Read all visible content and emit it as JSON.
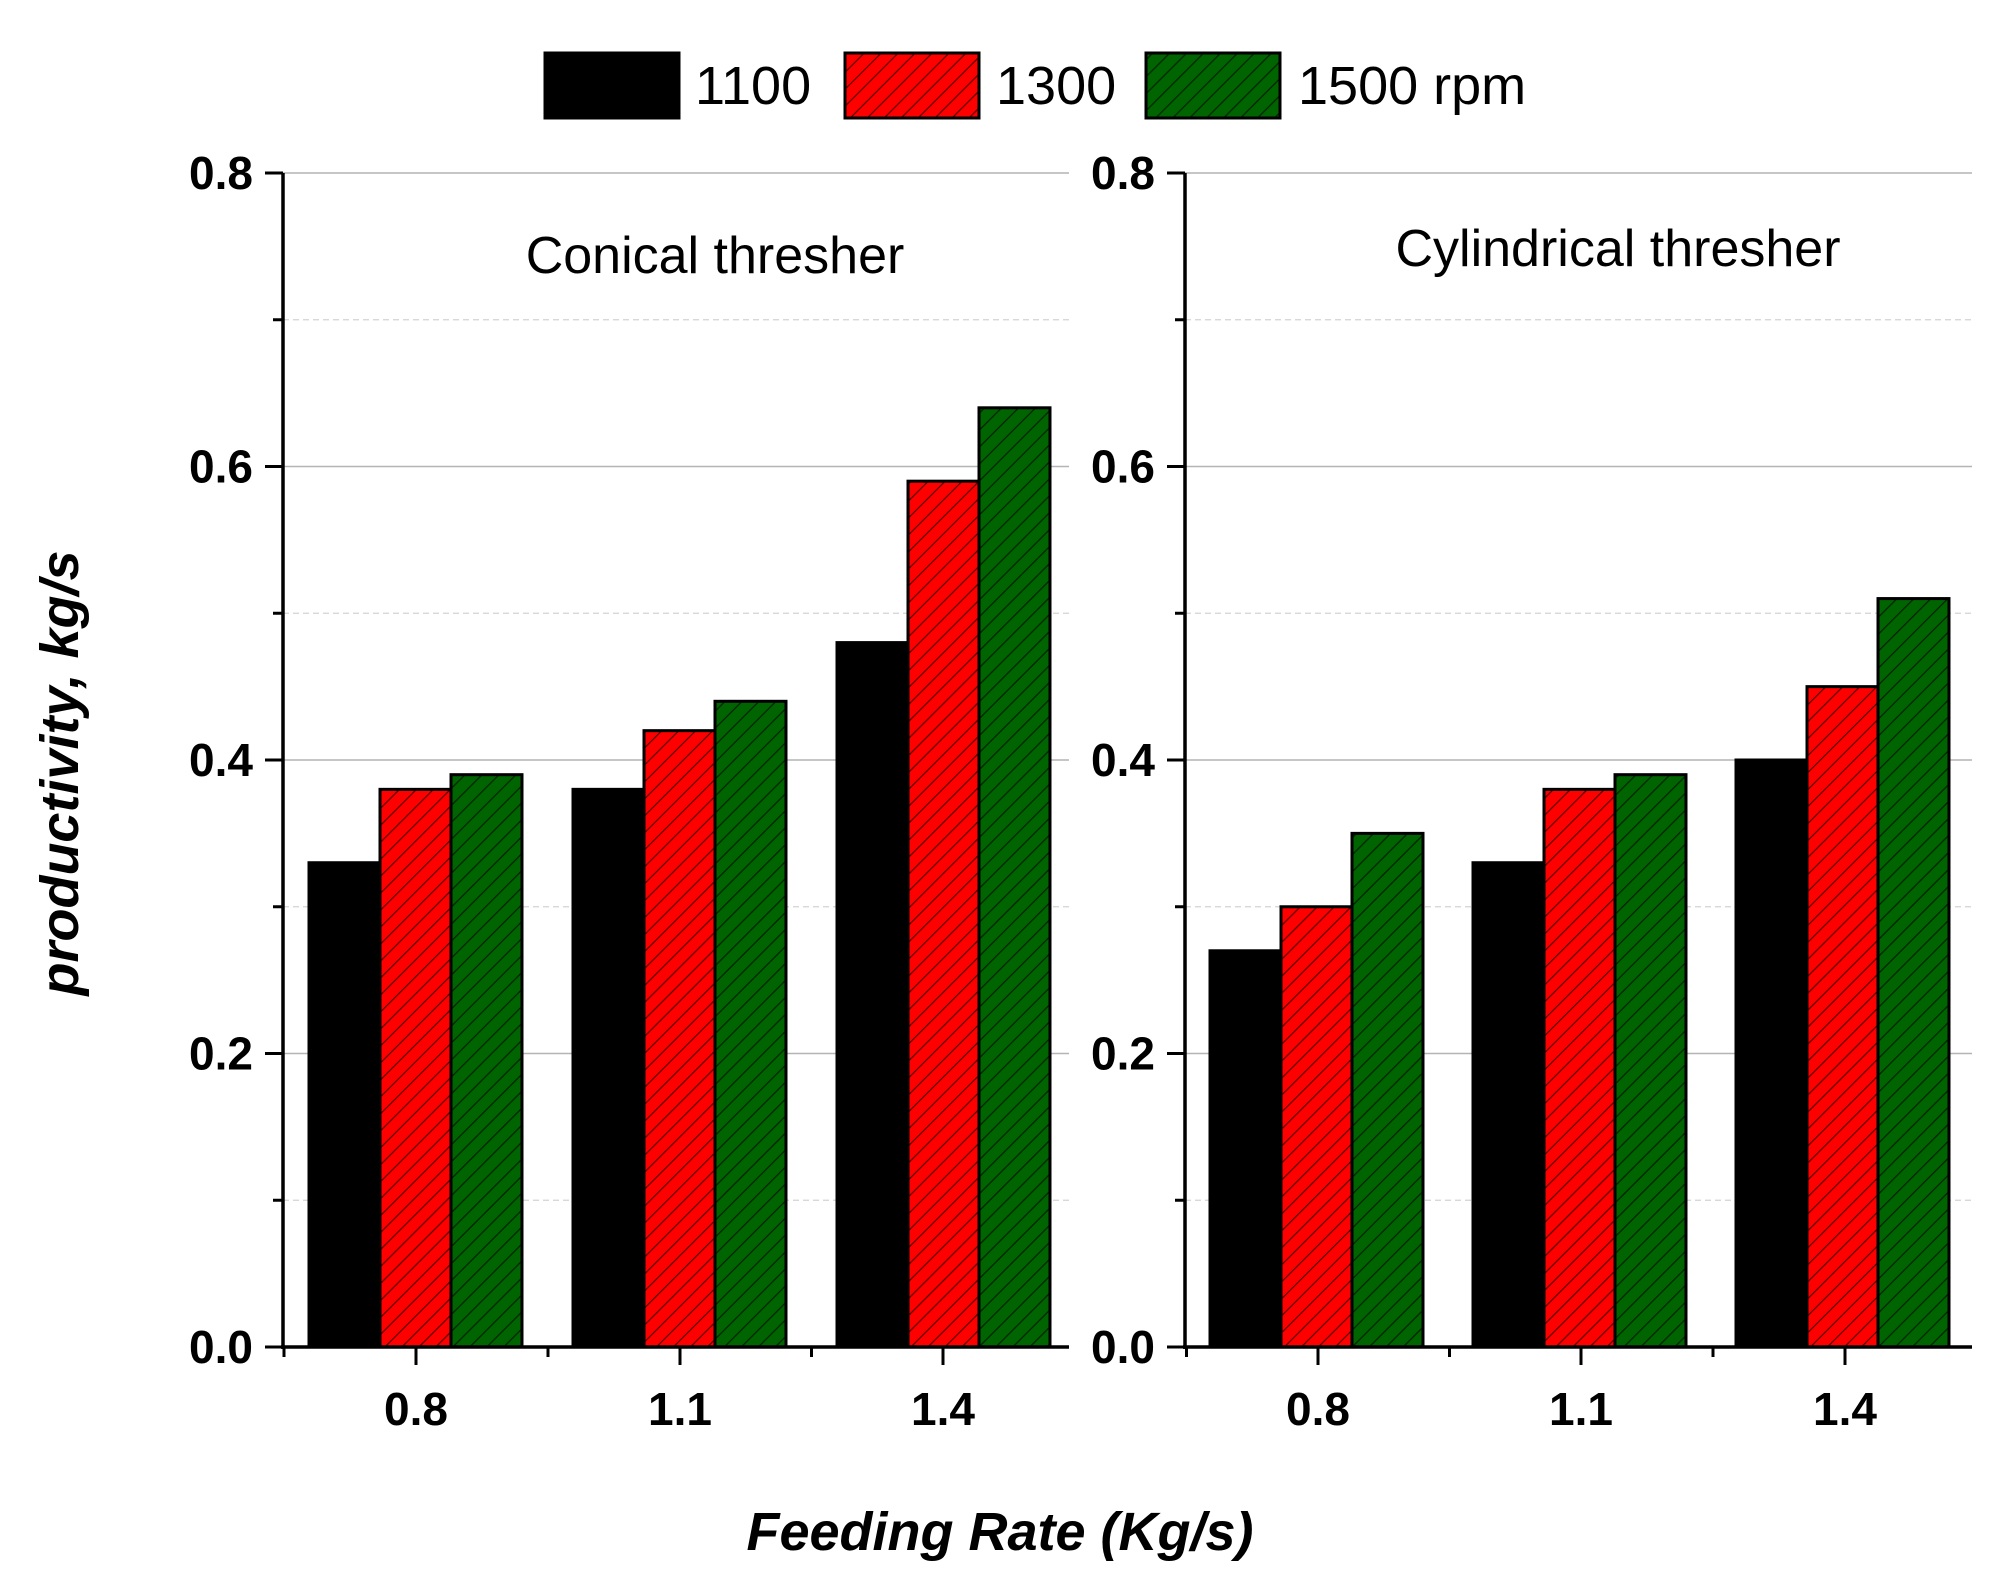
{
  "chart_data": {
    "type": "bar",
    "xlabel": "Feeding Rate (Kg/s)",
    "ylabel": "productivity, kg/s",
    "ylim": [
      0.0,
      0.8
    ],
    "yticks": [
      "0.0",
      "0.2",
      "0.4",
      "0.6",
      "0.8"
    ],
    "grid": true,
    "legend": {
      "placement": "top-center",
      "entries": [
        {
          "name": "1100",
          "color": "#000000",
          "pattern": "solid"
        },
        {
          "name": "1300",
          "color": "#ff0000",
          "pattern": "hatched"
        },
        {
          "name": "1500 rpm",
          "color": "#006400",
          "pattern": "hatched"
        }
      ]
    },
    "panels": [
      {
        "title": "Conical thresher",
        "categories": [
          "0.8",
          "1.1",
          "1.4"
        ],
        "series": [
          {
            "name": "1100",
            "values": [
              0.33,
              0.38,
              0.48
            ]
          },
          {
            "name": "1300",
            "values": [
              0.38,
              0.42,
              0.59
            ]
          },
          {
            "name": "1500 rpm",
            "values": [
              0.39,
              0.44,
              0.64
            ]
          }
        ]
      },
      {
        "title": "Cylindrical thresher",
        "categories": [
          "0.8",
          "1.1",
          "1.4"
        ],
        "series": [
          {
            "name": "1100",
            "values": [
              0.27,
              0.33,
              0.4
            ]
          },
          {
            "name": "1300",
            "values": [
              0.3,
              0.38,
              0.45
            ]
          },
          {
            "name": "1500 rpm",
            "values": [
              0.35,
              0.39,
              0.51
            ]
          }
        ]
      }
    ]
  }
}
